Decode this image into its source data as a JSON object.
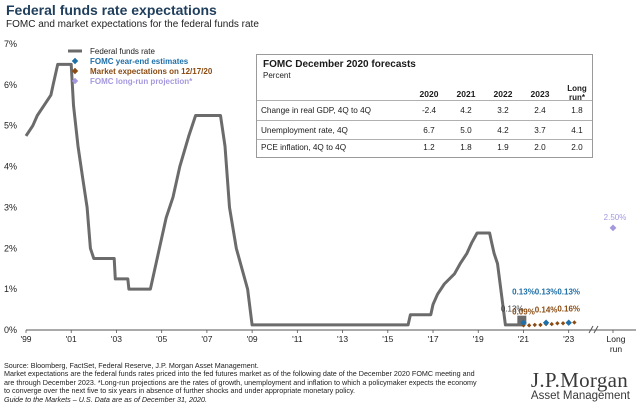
{
  "title": "Federal funds rate expectations",
  "subtitle": "FOMC and market expectations for the federal funds rate",
  "chart_data": {
    "type": "line",
    "title": "Federal funds rate expectations",
    "ylim": [
      0,
      7
    ],
    "yticks": [
      "0%",
      "1%",
      "2%",
      "3%",
      "4%",
      "5%",
      "6%",
      "7%"
    ],
    "xticks": [
      {
        "year": 1999,
        "label": "'99"
      },
      {
        "year": 2001,
        "label": "'01"
      },
      {
        "year": 2003,
        "label": "'03"
      },
      {
        "year": 2005,
        "label": "'05"
      },
      {
        "year": 2007,
        "label": "'07"
      },
      {
        "year": 2009,
        "label": "'09"
      },
      {
        "year": 2011,
        "label": "'11"
      },
      {
        "year": 2013,
        "label": "'13"
      },
      {
        "year": 2015,
        "label": "'15"
      },
      {
        "year": 2017,
        "label": "'17"
      },
      {
        "year": 2019,
        "label": "'19"
      },
      {
        "year": 2021,
        "label": "'21"
      },
      {
        "year": 2023,
        "label": "'23"
      }
    ],
    "long_run_label": [
      "Long",
      "run"
    ],
    "legend": [
      {
        "name": "Federal funds rate",
        "color": "#6b6b6b",
        "marker": "line"
      },
      {
        "name": "FOMC year-end estimates",
        "color": "#1e6fa8",
        "marker": "diamond"
      },
      {
        "name": "Market expectations on 12/17/20",
        "color": "#8a4b12",
        "marker": "diamond"
      },
      {
        "name": "FOMC long-run projection*",
        "color": "#a598de",
        "marker": "diamond"
      }
    ],
    "series": [
      {
        "name": "Federal funds rate",
        "color": "#6b6b6b",
        "points": [
          [
            1999.0,
            4.75
          ],
          [
            1999.3,
            5.0
          ],
          [
            1999.5,
            5.25
          ],
          [
            1999.8,
            5.5
          ],
          [
            2000.1,
            5.75
          ],
          [
            2000.2,
            6.0
          ],
          [
            2000.4,
            6.5
          ],
          [
            2001.0,
            6.5
          ],
          [
            2001.1,
            5.5
          ],
          [
            2001.3,
            4.5
          ],
          [
            2001.5,
            3.75
          ],
          [
            2001.7,
            3.0
          ],
          [
            2001.85,
            2.0
          ],
          [
            2002.0,
            1.75
          ],
          [
            2002.9,
            1.75
          ],
          [
            2002.95,
            1.25
          ],
          [
            2003.5,
            1.25
          ],
          [
            2003.55,
            1.0
          ],
          [
            2004.5,
            1.0
          ],
          [
            2004.7,
            1.5
          ],
          [
            2004.9,
            2.0
          ],
          [
            2005.2,
            2.75
          ],
          [
            2005.5,
            3.25
          ],
          [
            2005.8,
            4.0
          ],
          [
            2006.2,
            4.75
          ],
          [
            2006.5,
            5.25
          ],
          [
            2007.6,
            5.25
          ],
          [
            2007.8,
            4.5
          ],
          [
            2008.0,
            3.0
          ],
          [
            2008.3,
            2.0
          ],
          [
            2008.8,
            1.0
          ],
          [
            2009.0,
            0.125
          ],
          [
            2015.9,
            0.125
          ],
          [
            2016.0,
            0.375
          ],
          [
            2016.9,
            0.375
          ],
          [
            2017.0,
            0.625
          ],
          [
            2017.2,
            0.875
          ],
          [
            2017.5,
            1.125
          ],
          [
            2017.95,
            1.375
          ],
          [
            2018.2,
            1.625
          ],
          [
            2018.5,
            1.875
          ],
          [
            2018.7,
            2.125
          ],
          [
            2018.95,
            2.375
          ],
          [
            2019.5,
            2.375
          ],
          [
            2019.6,
            2.125
          ],
          [
            2019.7,
            1.875
          ],
          [
            2019.85,
            1.625
          ],
          [
            2020.2,
            0.125
          ],
          [
            2020.95,
            0.125
          ]
        ]
      },
      {
        "name": "FOMC year-end estimates",
        "color": "#1e6fa8",
        "points": [
          [
            2021,
            0.13
          ],
          [
            2022,
            0.13
          ],
          [
            2023,
            0.13
          ]
        ]
      },
      {
        "name": "Market expectations on 12/17/20",
        "color": "#8a4b12",
        "points": [
          [
            2021.0,
            0.09
          ],
          [
            2021.25,
            0.09
          ],
          [
            2021.5,
            0.1
          ],
          [
            2021.75,
            0.1
          ],
          [
            2022.0,
            0.12
          ],
          [
            2022.25,
            0.12
          ],
          [
            2022.5,
            0.14
          ],
          [
            2022.75,
            0.14
          ],
          [
            2023.0,
            0.15
          ],
          [
            2023.25,
            0.16
          ]
        ]
      },
      {
        "name": "FOMC long-run projection*",
        "color": "#a598de",
        "points": [
          [
            "Long run",
            2.5
          ]
        ]
      }
    ],
    "current_point": {
      "year": 2020.95,
      "value": 0.13
    },
    "annotations": [
      {
        "text": "0.13%",
        "x": 2020.9,
        "y": 0.13,
        "color": "#3a3a3a"
      },
      {
        "text": "0.13%",
        "x": 2021,
        "y": 0.13,
        "color": "#1e6fa8"
      },
      {
        "text": "0.13%",
        "x": 2022,
        "y": 0.13,
        "color": "#1e6fa8"
      },
      {
        "text": "0.13%",
        "x": 2023,
        "y": 0.13,
        "color": "#1e6fa8"
      },
      {
        "text": "0.09%",
        "x": 2021,
        "y": 0.09,
        "color": "#8a4b12"
      },
      {
        "text": "0.14%",
        "x": 2022,
        "y": 0.14,
        "color": "#8a4b12"
      },
      {
        "text": "0.16%",
        "x": 2023,
        "y": 0.16,
        "color": "#8a4b12"
      },
      {
        "text": "2.50%",
        "x": "Long run",
        "y": 2.5,
        "color": "#a598de"
      }
    ],
    "table": {
      "title": "FOMC December 2020 forecasts",
      "unit": "Percent",
      "columns": [
        "2020",
        "2021",
        "2022",
        "2023",
        "Long run*"
      ],
      "rows": [
        {
          "label": "Change in real GDP, 4Q to 4Q",
          "values": [
            "-2.4",
            "4.2",
            "3.2",
            "2.4",
            "1.8"
          ]
        },
        {
          "label": "Unemployment rate, 4Q",
          "values": [
            "6.7",
            "5.0",
            "4.2",
            "3.7",
            "4.1"
          ]
        },
        {
          "label": "PCE inflation, 4Q to 4Q",
          "values": [
            "1.2",
            "1.8",
            "1.9",
            "2.0",
            "2.0"
          ]
        }
      ]
    }
  },
  "footnotes": [
    "Source: Bloomberg, FactSet, Federal Reserve, J.P. Morgan Asset Management.",
    "Market expectations are the federal funds rates priced into the fed futures market as of the following date of the December 2020 FOMC meeting and",
    "are through December 2023. *Long-run projections are the rates of growth, unemployment and inflation to which a policymaker expects the economy",
    "to converge over the next five to six years in absence of further shocks and under appropriate monetary policy."
  ],
  "guide_note": "Guide to the Markets – U.S. Data are as of December 31, 2020.",
  "logo": {
    "brand": "J.P.Morgan",
    "sub": "Asset Management"
  }
}
